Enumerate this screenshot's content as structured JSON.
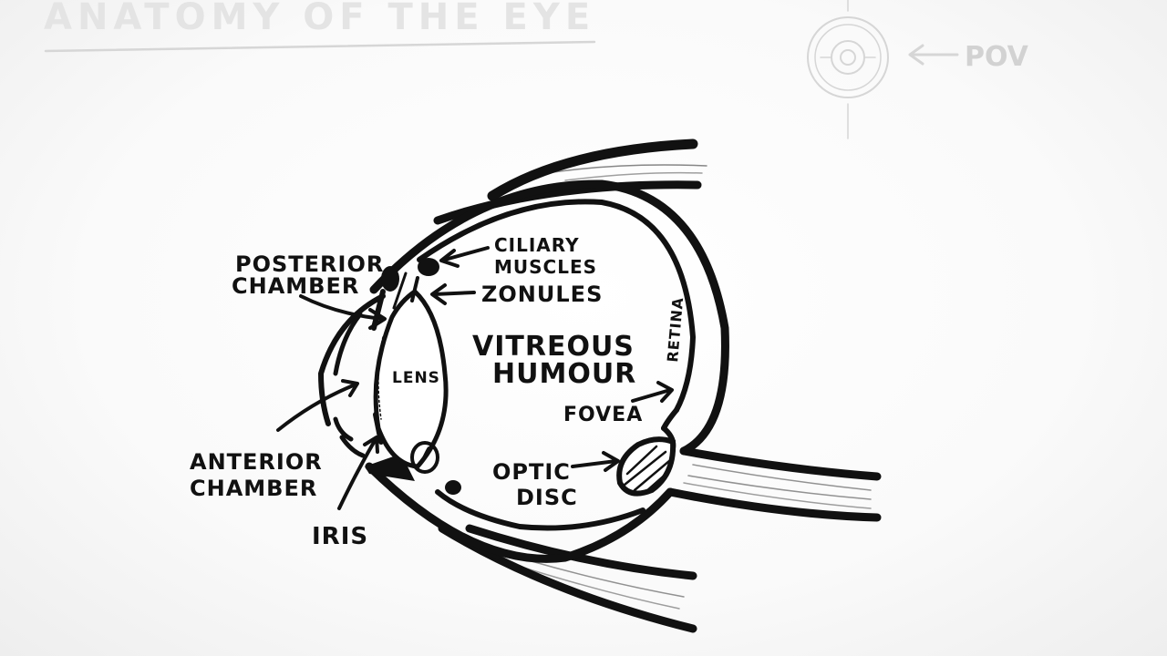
{
  "title": "ANATOMY OF THE EYE",
  "pov_label": "POV",
  "labels": {
    "posterior_chamber_1": "POSTERIOR",
    "posterior_chamber_2": "CHAMBER",
    "ciliary_1": "CILIARY",
    "ciliary_2": "MUSCLES",
    "zonules": "ZONULES",
    "lens": "LENS",
    "vitreous_1": "VITREOUS",
    "vitreous_2": "HUMOUR",
    "retina": "RETINA",
    "fovea": "FOVEA",
    "optic_1": "OPTIC",
    "optic_2": "DISC",
    "anterior_chamber_1": "ANTERIOR",
    "anterior_chamber_2": "CHAMBER",
    "iris": "IRIS"
  },
  "colors": {
    "ink": "#111111",
    "faint": "#d6d6d6",
    "paper": "#fafafa"
  }
}
